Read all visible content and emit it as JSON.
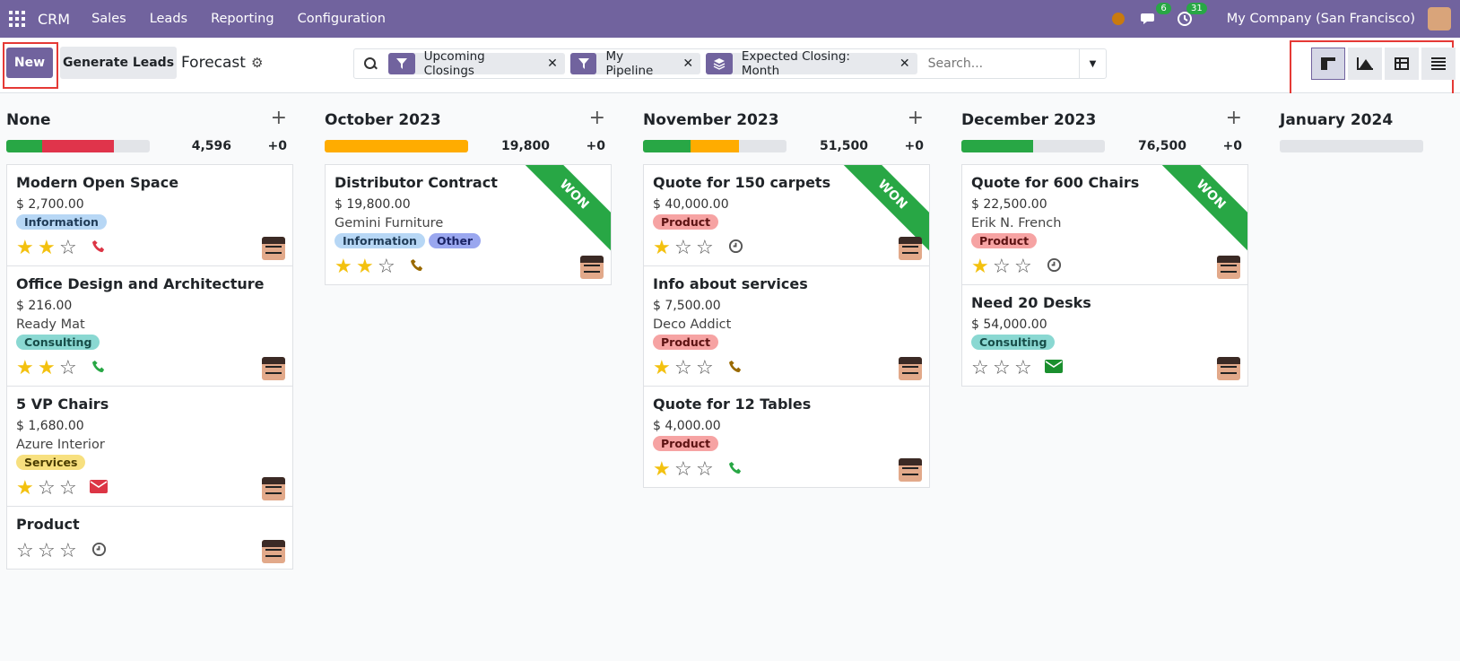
{
  "nav": {
    "brand": "CRM",
    "menu": [
      "Sales",
      "Leads",
      "Reporting",
      "Configuration"
    ],
    "messages_badge": "6",
    "activities_badge": "31",
    "company": "My Company (San Francisco)"
  },
  "control": {
    "new_label": "New",
    "generate_label": "Generate Leads",
    "title": "Forecast",
    "search_placeholder": "Search...",
    "facets": [
      {
        "label": "Upcoming Closings",
        "icon": "filter-icon"
      },
      {
        "label": "My Pipeline",
        "icon": "filter-icon"
      },
      {
        "label": "Expected Closing: Month",
        "icon": "group-by-icon"
      }
    ],
    "views": [
      "kanban",
      "graph",
      "pivot",
      "list"
    ]
  },
  "colors": {
    "brand": "#71639e",
    "green": "#28a745",
    "red": "#dc3545",
    "orange": "#ffac00"
  },
  "columns": [
    {
      "title": "None",
      "total": "4,596",
      "plus": "+0",
      "progress": [
        {
          "color": "#28a745",
          "pct": 25
        },
        {
          "color": "#e0344b",
          "pct": 50
        }
      ],
      "cards": [
        {
          "title": "Modern Open Space",
          "amount": "$ 2,700.00",
          "company": "",
          "tags": [
            {
              "label": "Information",
              "bg": "#b7d7f5",
              "fg": "#1f3b57"
            }
          ],
          "stars": 2,
          "activity": "phone-icon",
          "activity_color": "#dc3545",
          "won": false
        },
        {
          "title": "Office Design and Architecture",
          "amount": "$ 216.00",
          "company": "Ready Mat",
          "tags": [
            {
              "label": "Consulting",
              "bg": "#8ad8d2",
              "fg": "#174d49"
            }
          ],
          "stars": 2,
          "activity": "phone-icon",
          "activity_color": "#28a745",
          "won": false
        },
        {
          "title": "5 VP Chairs",
          "amount": "$ 1,680.00",
          "company": "Azure Interior",
          "tags": [
            {
              "label": "Services",
              "bg": "#f7e07f",
              "fg": "#4b3d00"
            }
          ],
          "stars": 1,
          "activity": "envelope-icon",
          "activity_color": "#dc3545",
          "won": false
        },
        {
          "title": "Product",
          "amount": "",
          "company": "",
          "tags": [],
          "stars": 0,
          "activity": "clock-icon",
          "activity_color": "#555555",
          "won": false
        }
      ]
    },
    {
      "title": "October 2023",
      "total": "19,800",
      "plus": "+0",
      "progress": [
        {
          "color": "#ffac00",
          "pct": 100
        }
      ],
      "cards": [
        {
          "title": "Distributor Contract",
          "amount": "$ 19,800.00",
          "company": "Gemini Furniture",
          "tags": [
            {
              "label": "Information",
              "bg": "#b7d7f5",
              "fg": "#1f3b57"
            },
            {
              "label": "Other",
              "bg": "#9aa7ef",
              "fg": "#1b2466"
            }
          ],
          "stars": 2,
          "activity": "phone-icon",
          "activity_color": "#9a6a00",
          "won": true
        }
      ]
    },
    {
      "title": "November 2023",
      "total": "51,500",
      "plus": "+0",
      "progress": [
        {
          "color": "#28a745",
          "pct": 33
        },
        {
          "color": "#ffac00",
          "pct": 34
        }
      ],
      "cards": [
        {
          "title": "Quote for 150 carpets",
          "amount": "$ 40,000.00",
          "company": "",
          "tags": [
            {
              "label": "Product",
              "bg": "#f6a3a3",
              "fg": "#5c1212"
            }
          ],
          "stars": 1,
          "activity": "clock-icon",
          "activity_color": "#555555",
          "won": true
        },
        {
          "title": "Info about services",
          "amount": "$ 7,500.00",
          "company": "Deco Addict",
          "tags": [
            {
              "label": "Product",
              "bg": "#f6a3a3",
              "fg": "#5c1212"
            }
          ],
          "stars": 1,
          "activity": "phone-icon",
          "activity_color": "#9a6a00",
          "won": false
        },
        {
          "title": "Quote for 12 Tables",
          "amount": "$ 4,000.00",
          "company": "",
          "tags": [
            {
              "label": "Product",
              "bg": "#f6a3a3",
              "fg": "#5c1212"
            }
          ],
          "stars": 1,
          "activity": "phone-icon",
          "activity_color": "#28a745",
          "won": false
        }
      ]
    },
    {
      "title": "December 2023",
      "total": "76,500",
      "plus": "+0",
      "progress": [
        {
          "color": "#28a745",
          "pct": 50
        }
      ],
      "cards": [
        {
          "title": "Quote for 600 Chairs",
          "amount": "$ 22,500.00",
          "company": "Erik N. French",
          "tags": [
            {
              "label": "Product",
              "bg": "#f6a3a3",
              "fg": "#5c1212"
            }
          ],
          "stars": 1,
          "activity": "clock-icon",
          "activity_color": "#555555",
          "won": true
        },
        {
          "title": "Need 20 Desks",
          "amount": "$ 54,000.00",
          "company": "",
          "tags": [
            {
              "label": "Consulting",
              "bg": "#8ad8d2",
              "fg": "#174d49"
            }
          ],
          "stars": 0,
          "activity": "envelope-icon",
          "activity_color": "#1a8f2e",
          "won": false
        }
      ]
    },
    {
      "title": "January 2024",
      "total": "",
      "plus": "",
      "progress": [],
      "cards": []
    }
  ],
  "won_label": "WON"
}
